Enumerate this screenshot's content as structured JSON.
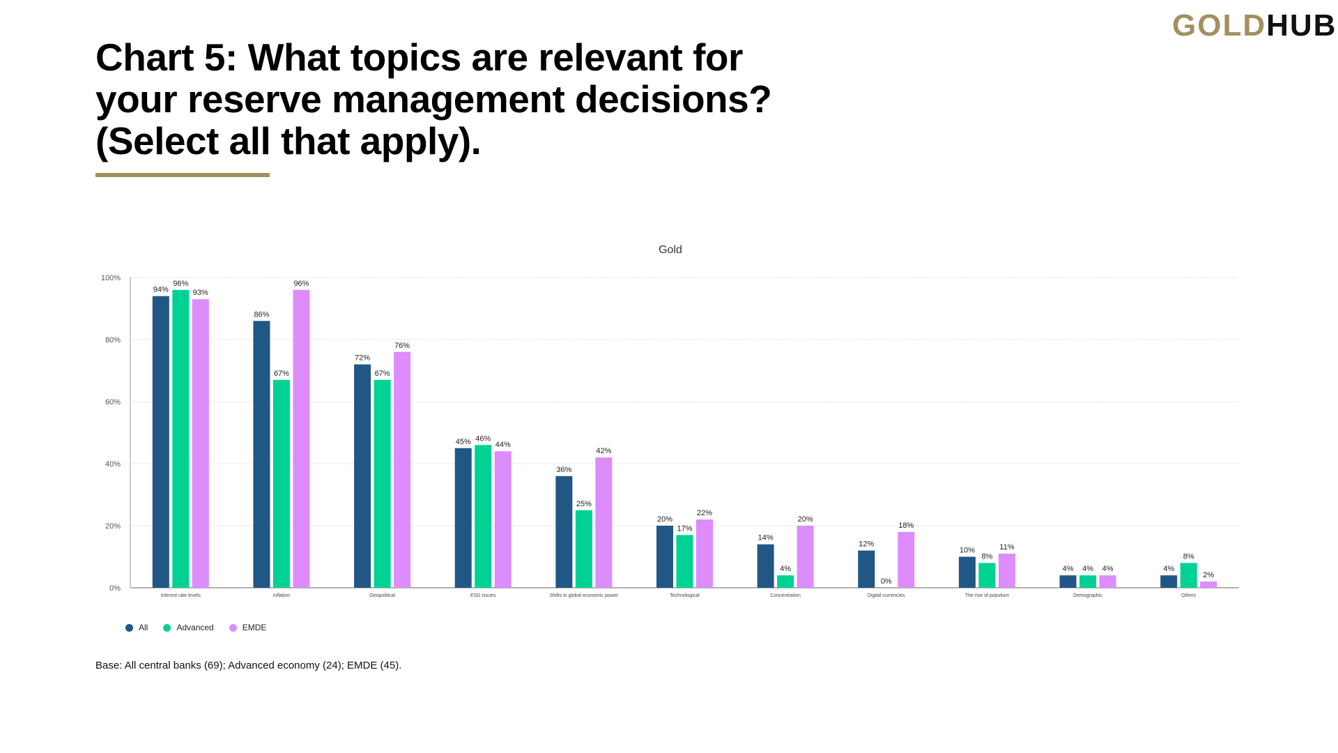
{
  "header": {
    "title": "Chart 5: What topics are relevant for your reserve management decisions? (Select all that apply).",
    "logo_gold": "GOLD",
    "logo_hub": "HUB"
  },
  "footer": {
    "base": "Base: All central banks (69); Advanced economy (24); EMDE (45)."
  },
  "chart_data": {
    "type": "bar",
    "title": "Gold",
    "categories": [
      "Interest rate levels",
      "Inflation",
      "Geopolitical",
      "ESG issues",
      "Shifts in global economic power",
      "Technological",
      "Concentration",
      "Digital currencies",
      "The rise of populism",
      "Demographic",
      "Others"
    ],
    "series": [
      {
        "name": "All",
        "color": "#215785",
        "values": [
          94,
          86,
          72,
          45,
          36,
          20,
          14,
          12,
          10,
          4,
          4
        ]
      },
      {
        "name": "Advanced",
        "color": "#00d294",
        "values": [
          96,
          67,
          67,
          46,
          25,
          17,
          4,
          0,
          8,
          4,
          8
        ]
      },
      {
        "name": "EMDE",
        "color": "#dd8cfc",
        "values": [
          93,
          96,
          76,
          44,
          42,
          22,
          20,
          18,
          11,
          4,
          2
        ]
      }
    ],
    "yticks": [
      "0%",
      "20%",
      "40%",
      "60%",
      "80%",
      "100%"
    ],
    "ylim": [
      0,
      100
    ],
    "grid": true,
    "legend": "bottom-left"
  }
}
